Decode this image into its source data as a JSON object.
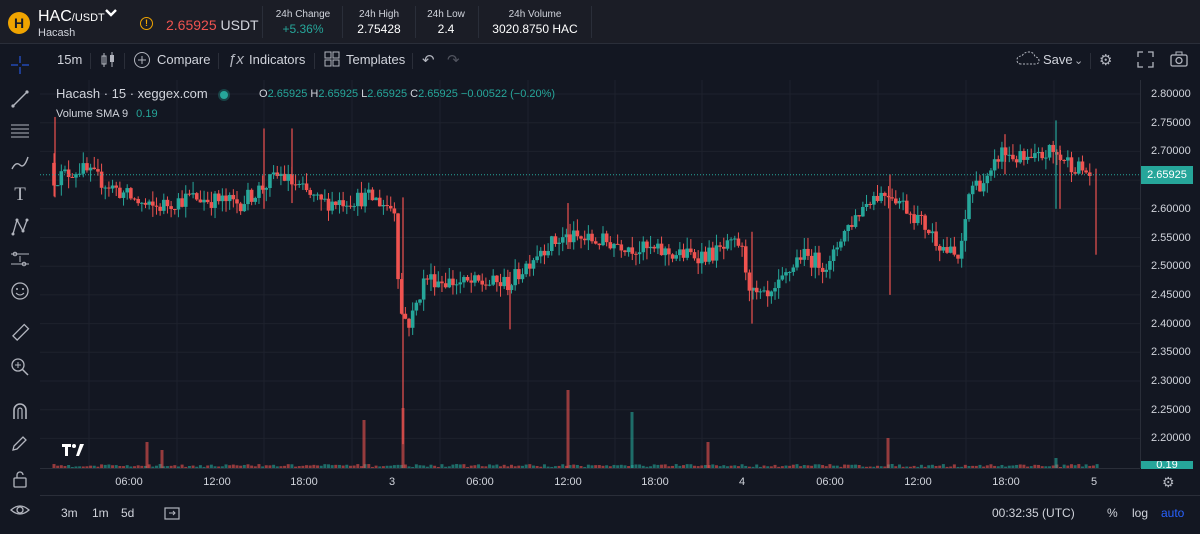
{
  "ticker": {
    "logo_glyph": "H",
    "pair_base": "HAC",
    "pair_quote": "/USDT",
    "coin_name": "Hacash",
    "info_glyph": "!",
    "last_price": "2.65925",
    "last_price_unit": " USDT",
    "stats": [
      {
        "label": "24h Change",
        "value": "+5.36%"
      },
      {
        "label": "24h High",
        "value": "2.75428"
      },
      {
        "label": "24h Low",
        "value": "2.4"
      },
      {
        "label": "24h Volume",
        "value": "3020.8750 HAC"
      }
    ]
  },
  "toolbar": {
    "interval": "15m",
    "compare": "Compare",
    "indicators": "Indicators",
    "templates": "Templates",
    "save": "Save"
  },
  "legend": {
    "symbol": "Hacash · 15 · xeggex.com",
    "o_label": "O",
    "o": "2.65925",
    "h_label": "H",
    "h": "2.65925",
    "l_label": "L",
    "l": "2.65925",
    "c_label": "C",
    "c": "2.65925",
    "change": "−0.00522 (−0.20%)",
    "volume_label": "Volume SMA 9",
    "volume_value": "0.19"
  },
  "price_scale": {
    "labels": [
      "2.80000",
      "2.75000",
      "2.70000",
      "2.65000",
      "2.60000",
      "2.55000",
      "2.50000",
      "2.45000",
      "2.40000",
      "2.35000",
      "2.30000",
      "2.25000",
      "2.20000"
    ],
    "current_badge": "2.65925",
    "volume_badge": "0.19"
  },
  "time_scale": {
    "labels": [
      "06:00",
      "12:00",
      "18:00",
      "3",
      "06:00",
      "12:00",
      "18:00",
      "4",
      "06:00",
      "12:00",
      "18:00",
      "5"
    ]
  },
  "bottom": {
    "ranges": [
      "3m",
      "1m",
      "5d"
    ],
    "clock": "00:32:35 (UTC)",
    "percent": "%",
    "log": "log",
    "auto": "auto"
  },
  "colors": {
    "up": "#26a69a",
    "down": "#ef5350",
    "accent": "#2962ff",
    "background": "#131722"
  },
  "chart_data": {
    "type": "candlestick",
    "interval": "15m",
    "ylim": [
      2.18,
      2.81
    ],
    "current_price": 2.65925,
    "x_ticks": [
      "06:00",
      "12:00",
      "18:00",
      "3",
      "06:00",
      "12:00",
      "18:00",
      "4",
      "06:00",
      "12:00",
      "18:00",
      "5"
    ],
    "segments": [
      {
        "from": "start",
        "to": "3 00:00",
        "open": 2.68,
        "close": 2.64,
        "high": 2.74,
        "low": 2.55
      },
      {
        "from": "3 00:00",
        "to": "3 01:00",
        "open": 2.61,
        "close": 2.4,
        "high": 2.61,
        "low": 2.19
      },
      {
        "from": "3 01:00",
        "to": "3 12:00",
        "open": 2.41,
        "close": 2.55,
        "high": 2.56,
        "low": 2.39
      },
      {
        "from": "3 12:00",
        "to": "4 00:00",
        "open": 2.55,
        "close": 2.52,
        "high": 2.61,
        "low": 2.48
      },
      {
        "from": "4 00:00",
        "to": "4 09:00",
        "open": 2.44,
        "close": 2.62,
        "high": 2.66,
        "low": 2.4
      },
      {
        "from": "4 09:00",
        "to": "4 14:00",
        "open": 2.63,
        "close": 2.51,
        "high": 2.65,
        "low": 2.45
      },
      {
        "from": "4 14:00",
        "to": "5 00:00",
        "open": 2.58,
        "close": 2.66,
        "high": 2.754,
        "low": 2.51
      }
    ]
  }
}
